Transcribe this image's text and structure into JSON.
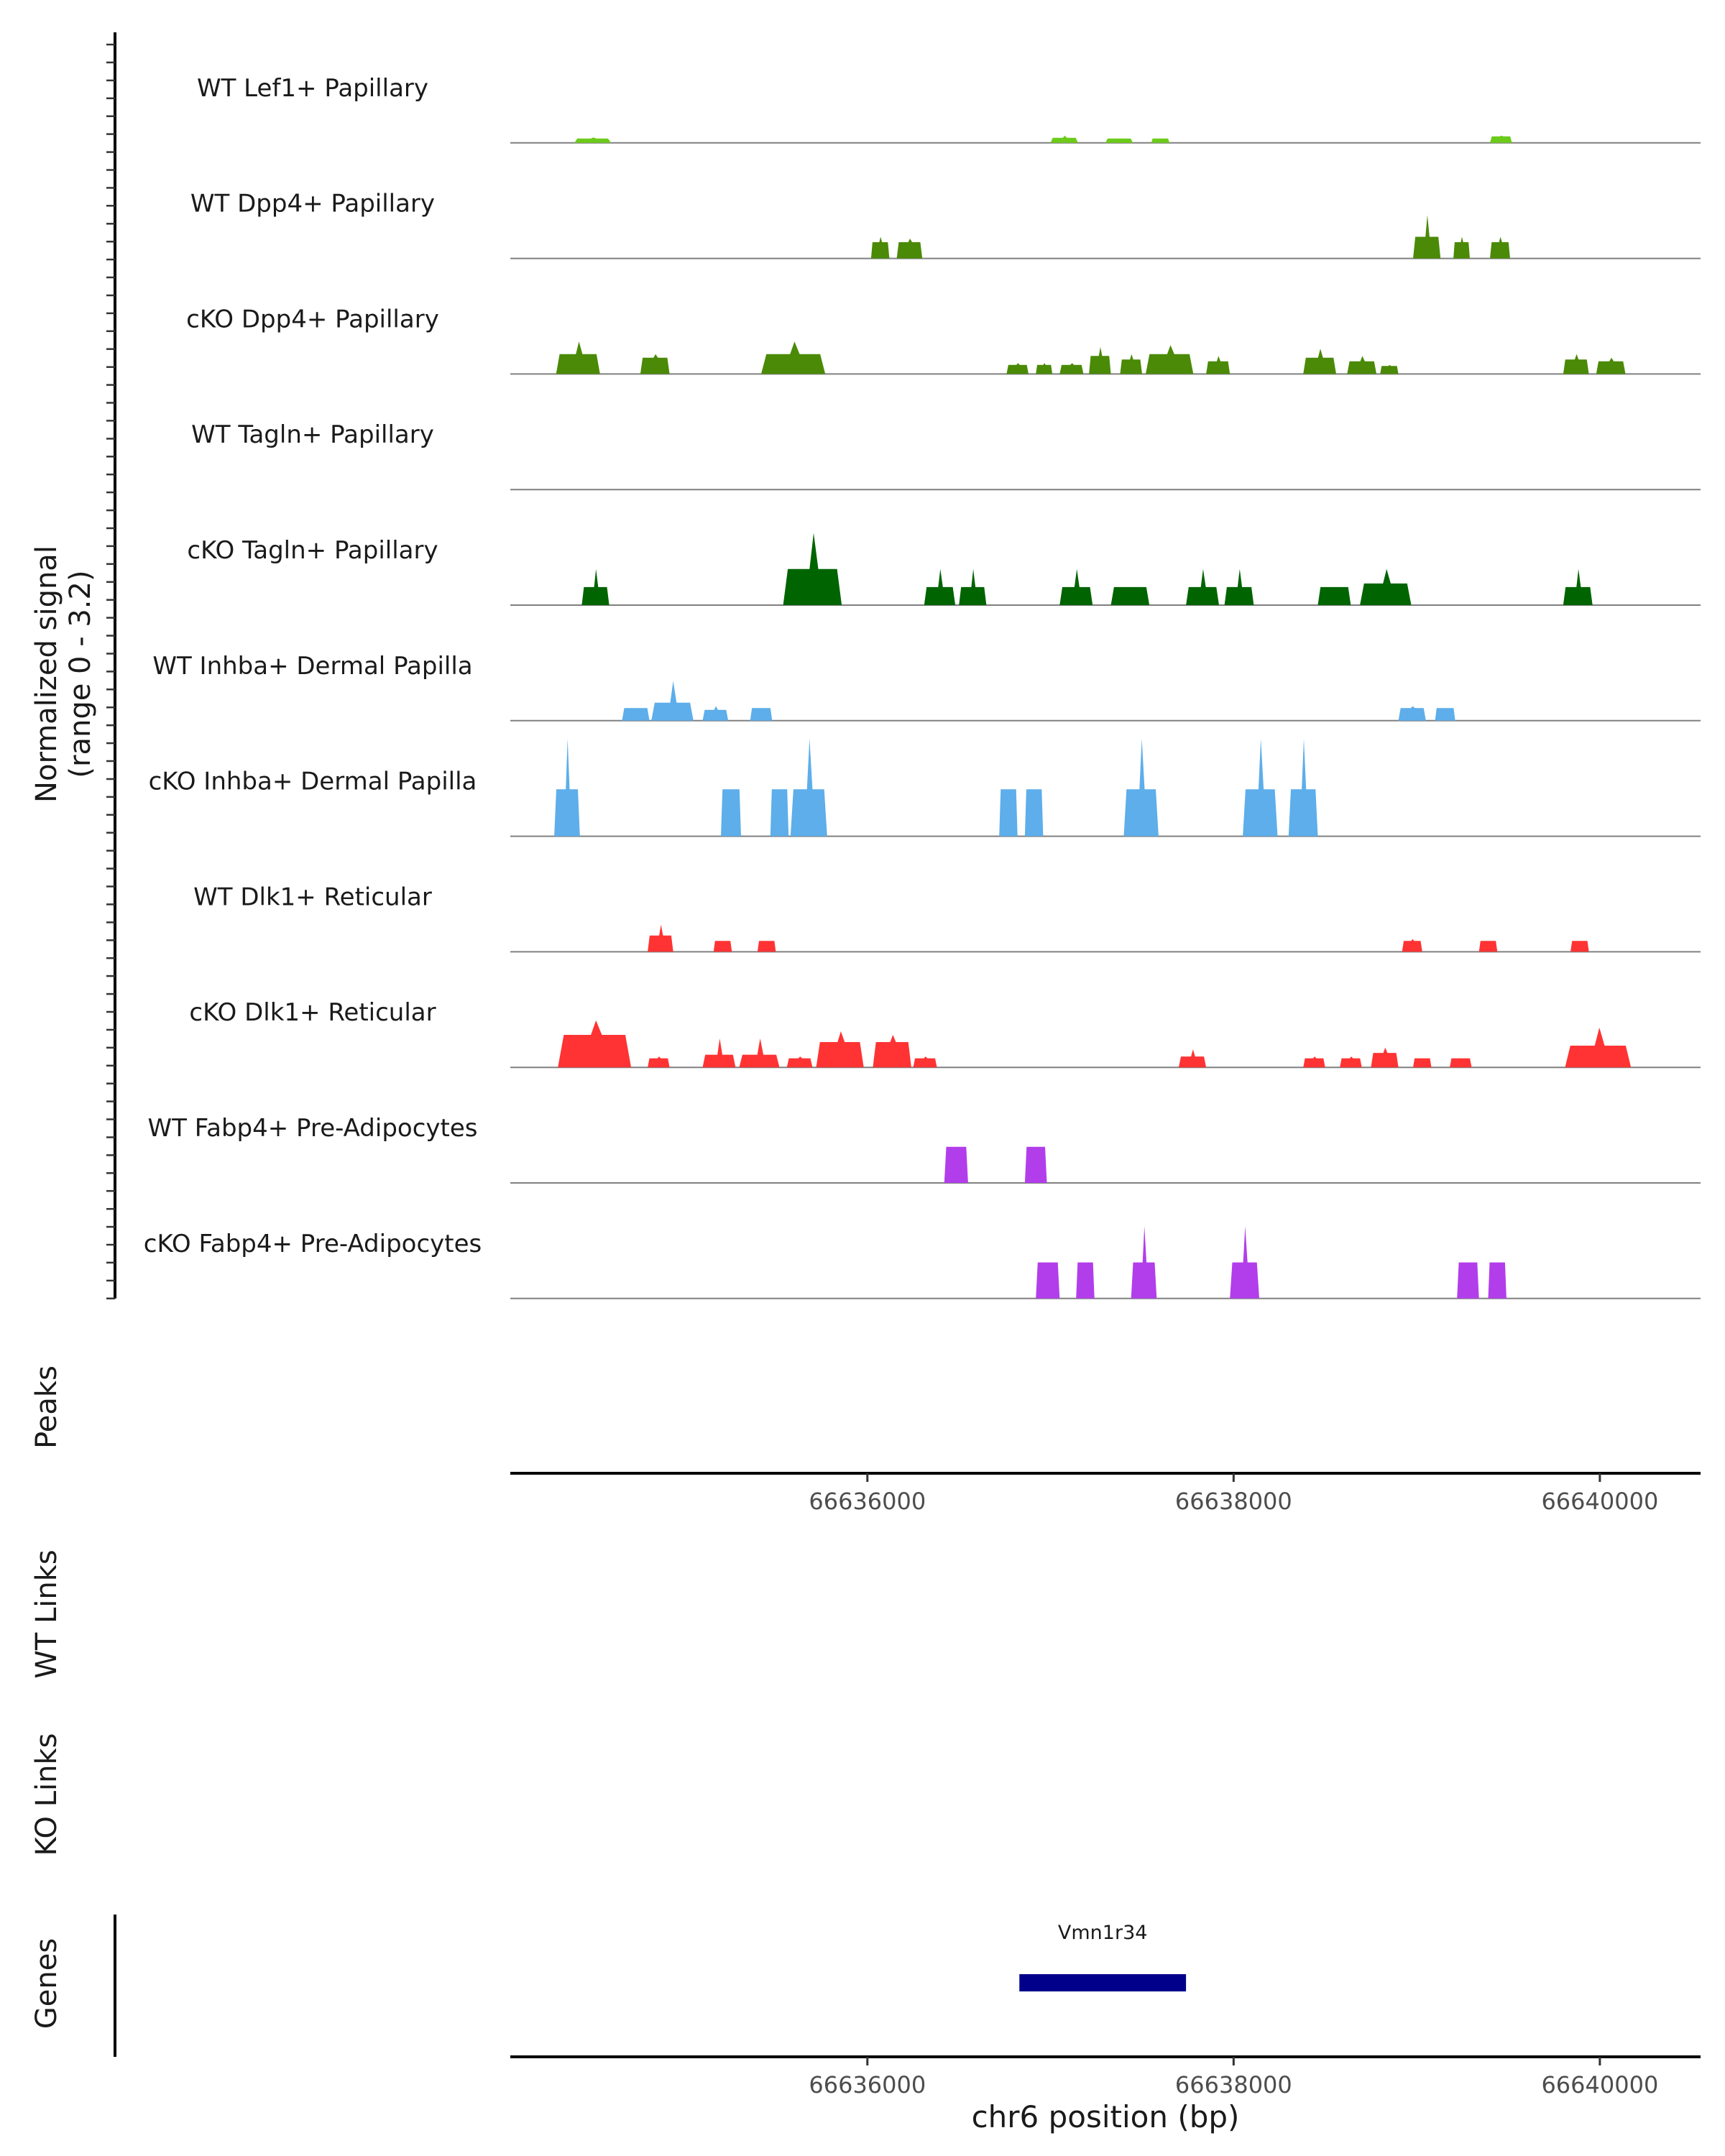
{
  "chart_data": {
    "type": "area",
    "title": "",
    "coverage": {
      "ylabel_line1": "Normalized signal",
      "ylabel_line2": "(range 0 - 3.2)",
      "ylim": [
        0,
        3.2
      ],
      "tracks": [
        {
          "label": "WT Lef1+ Papillary",
          "color": "#6CCB1A",
          "peaks": [
            [
              66634400,
              66634600,
              0.15,
              0.12
            ],
            [
              66637000,
              66637150,
              0.2,
              0.14
            ],
            [
              66637300,
              66637450,
              0.12,
              0.12
            ],
            [
              66637550,
              66637650,
              0.12,
              0.12
            ],
            [
              66639400,
              66639520,
              0.2,
              0.18
            ]
          ]
        },
        {
          "label": "WT Dpp4+ Papillary",
          "color": "#4A8A07",
          "peaks": [
            [
              66636020,
              66636120,
              0.6,
              0.45
            ],
            [
              66636160,
              66636300,
              0.55,
              0.45
            ],
            [
              66638980,
              66639130,
              1.2,
              0.6
            ],
            [
              66639200,
              66639290,
              0.6,
              0.45
            ],
            [
              66639400,
              66639510,
              0.6,
              0.45
            ]
          ]
        },
        {
          "label": "cKO Dpp4+ Papillary",
          "color": "#4A8A07",
          "peaks": [
            [
              66634300,
              66634540,
              0.9,
              0.55
            ],
            [
              66634760,
              66634920,
              0.55,
              0.45
            ],
            [
              66635420,
              66635770,
              0.9,
              0.55
            ],
            [
              66636760,
              66636880,
              0.3,
              0.25
            ],
            [
              66636920,
              66637010,
              0.3,
              0.25
            ],
            [
              66637050,
              66637180,
              0.3,
              0.25
            ],
            [
              66637210,
              66637330,
              0.75,
              0.5
            ],
            [
              66637380,
              66637500,
              0.55,
              0.4
            ],
            [
              66637520,
              66637780,
              0.8,
              0.55
            ],
            [
              66637850,
              66637980,
              0.5,
              0.35
            ],
            [
              66638380,
              66638560,
              0.7,
              0.45
            ],
            [
              66638620,
              66638780,
              0.5,
              0.35
            ],
            [
              66638800,
              66638900,
              0.25,
              0.22
            ],
            [
              66639800,
              66639940,
              0.55,
              0.4
            ],
            [
              66639980,
              66640140,
              0.45,
              0.35
            ]
          ]
        },
        {
          "label": "WT Tagln+ Papillary",
          "color": "#006400",
          "peaks": []
        },
        {
          "label": "cKO Tagln+ Papillary",
          "color": "#006400",
          "peaks": [
            [
              66634440,
              66634590,
              1.0,
              0.5
            ],
            [
              66635540,
              66635860,
              2.0,
              1.0
            ],
            [
              66636310,
              66636480,
              1.0,
              0.5
            ],
            [
              66636500,
              66636650,
              1.0,
              0.5
            ],
            [
              66637050,
              66637230,
              1.0,
              0.5
            ],
            [
              66637330,
              66637540,
              0.5,
              0.5
            ],
            [
              66637740,
              66637920,
              1.0,
              0.5
            ],
            [
              66637950,
              66638110,
              1.0,
              0.5
            ],
            [
              66638460,
              66638640,
              0.5,
              0.5
            ],
            [
              66638690,
              66638970,
              1.0,
              0.6
            ],
            [
              66639800,
              66639960,
              1.0,
              0.5
            ]
          ]
        },
        {
          "label": "WT Inhba+ Dermal Papilla",
          "color": "#5DAEEA",
          "peaks": [
            [
              66634660,
              66634810,
              0.35,
              0.35
            ],
            [
              66634820,
              66635050,
              1.1,
              0.5
            ],
            [
              66635100,
              66635240,
              0.4,
              0.3
            ],
            [
              66635360,
              66635480,
              0.35,
              0.35
            ],
            [
              66638900,
              66639050,
              0.4,
              0.35
            ],
            [
              66639100,
              66639210,
              0.35,
              0.35
            ]
          ]
        },
        {
          "label": "cKO Inhba+ Dermal Papilla",
          "color": "#5DAEEA",
          "peaks": [
            [
              66634290,
              66634430,
              2.7,
              1.3
            ],
            [
              66635200,
              66635310,
              1.3,
              1.3
            ],
            [
              66635470,
              66635570,
              1.3,
              1.3
            ],
            [
              66635580,
              66635780,
              2.7,
              1.3
            ],
            [
              66636720,
              66636820,
              1.3,
              1.3
            ],
            [
              66636860,
              66636960,
              1.3,
              1.3
            ],
            [
              66637400,
              66637590,
              2.7,
              1.3
            ],
            [
              66638050,
              66638240,
              2.7,
              1.3
            ],
            [
              66638300,
              66638460,
              2.7,
              1.3
            ]
          ]
        },
        {
          "label": "WT Dlk1+ Reticular",
          "color": "#FF3333",
          "peaks": [
            [
              66634800,
              66634940,
              0.75,
              0.45
            ],
            [
              66635160,
              66635260,
              0.3,
              0.3
            ],
            [
              66635400,
              66635500,
              0.3,
              0.3
            ],
            [
              66638920,
              66639030,
              0.35,
              0.3
            ],
            [
              66639340,
              66639440,
              0.3,
              0.3
            ],
            [
              66639840,
              66639940,
              0.3,
              0.3
            ]
          ]
        },
        {
          "label": "cKO Dlk1+ Reticular",
          "color": "#FF3333",
          "peaks": [
            [
              66634310,
              66634710,
              1.3,
              0.9
            ],
            [
              66634800,
              66634920,
              0.3,
              0.25
            ],
            [
              66635100,
              66635280,
              0.8,
              0.35
            ],
            [
              66635300,
              66635520,
              0.8,
              0.35
            ],
            [
              66635560,
              66635700,
              0.3,
              0.25
            ],
            [
              66635720,
              66635980,
              1.0,
              0.7
            ],
            [
              66636030,
              66636240,
              0.9,
              0.7
            ],
            [
              66636250,
              66636380,
              0.3,
              0.25
            ],
            [
              66637700,
              66637850,
              0.5,
              0.3
            ],
            [
              66638380,
              66638500,
              0.3,
              0.25
            ],
            [
              66638580,
              66638700,
              0.3,
              0.25
            ],
            [
              66638750,
              66638900,
              0.55,
              0.4
            ],
            [
              66638980,
              66639080,
              0.25,
              0.25
            ],
            [
              66639180,
              66639300,
              0.25,
              0.25
            ],
            [
              66639810,
              66640170,
              1.1,
              0.6
            ]
          ]
        },
        {
          "label": "WT Fabp4+ Pre-Adipocytes",
          "color": "#B23EEB",
          "peaks": [
            [
              66636420,
              66636550,
              1.0,
              1.0
            ],
            [
              66636860,
              66636980,
              1.0,
              1.0
            ]
          ]
        },
        {
          "label": "cKO Fabp4+ Pre-Adipocytes",
          "color": "#B23EEB",
          "peaks": [
            [
              66636920,
              66637050,
              1.0,
              1.0
            ],
            [
              66637140,
              66637240,
              1.0,
              1.0
            ],
            [
              66637440,
              66637580,
              2.0,
              1.0
            ],
            [
              66637980,
              66638140,
              2.0,
              1.0
            ],
            [
              66639220,
              66639340,
              1.0,
              1.0
            ],
            [
              66639390,
              66639490,
              1.0,
              1.0
            ]
          ]
        }
      ]
    },
    "peaks_panel": {
      "label": "Peaks",
      "xticks": [
        66636000,
        66638000,
        66640000
      ],
      "xtick_labels": [
        "66636000",
        "66638000",
        "66640000"
      ]
    },
    "links_panels": [
      {
        "label": "WT Links"
      },
      {
        "label": "KO Links"
      }
    ],
    "genes_panel": {
      "label": "Genes",
      "genes": [
        {
          "name": "Vmn1r34",
          "start": 66636830,
          "end": 66637740,
          "color": "#00008B"
        }
      ],
      "xticks": [
        66636000,
        66638000,
        66640000
      ],
      "xtick_labels": [
        "66636000",
        "66638000",
        "66640000"
      ],
      "xlabel": "chr6 position (bp)"
    },
    "xlim": [
      66634050,
      66640550
    ]
  }
}
